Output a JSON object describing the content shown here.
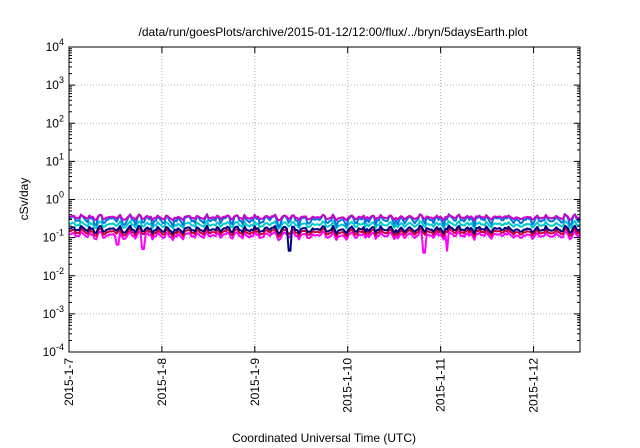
{
  "chart_data": {
    "type": "line",
    "title": "/data/run/goesPlots/archive/2015-01-12/12:00/flux/../bryn/5daysEarth.plot",
    "xlabel": "Coordinated Universal Time (UTC)",
    "ylabel": "cSv/day",
    "yscale": "log",
    "ylim": [
      0.0001,
      10000
    ],
    "xlim": [
      "2015-01-07",
      "2015-01-12 12:00"
    ],
    "grid": true,
    "x_ticks": [
      "2015-1-7",
      "2015-1-8",
      "2015-1-9",
      "2015-1-10",
      "2015-1-11",
      "2015-1-12"
    ],
    "y_ticks": [
      {
        "base": "10",
        "exp": "-4"
      },
      {
        "base": "10",
        "exp": "-3"
      },
      {
        "base": "10",
        "exp": "-2"
      },
      {
        "base": "10",
        "exp": "-1"
      },
      {
        "base": "10",
        "exp": "0"
      },
      {
        "base": "10",
        "exp": "1"
      },
      {
        "base": "10",
        "exp": "2"
      },
      {
        "base": "10",
        "exp": "3"
      },
      {
        "base": "10",
        "exp": "4"
      }
    ],
    "series": [
      {
        "color": "#ff00ff",
        "base": 0.115,
        "amplitude": 0.03,
        "dips": [
          {
            "day": "2015-01-07 12:30",
            "value": 0.065
          },
          {
            "day": "2015-01-07 19:10",
            "value": 0.05
          },
          {
            "day": "2015-01-10 19:40",
            "value": 0.04
          },
          {
            "day": "2015-01-11 01:40",
            "value": 0.045
          }
        ]
      },
      {
        "color": "#cc0033",
        "base": 0.14,
        "amplitude": 0.035,
        "dips": []
      },
      {
        "color": "#000080",
        "base": 0.165,
        "amplitude": 0.04,
        "dips": [
          {
            "day": "2015-01-09 08:50",
            "value": 0.045
          }
        ]
      },
      {
        "color": "#00cccc",
        "base": 0.22,
        "amplitude": 0.05,
        "dips": []
      },
      {
        "color": "#0077dd",
        "base": 0.3,
        "amplitude": 0.11,
        "dips": []
      },
      {
        "color": "#cc00cc",
        "base": 0.34,
        "amplitude": 0.06,
        "dips": []
      }
    ]
  }
}
